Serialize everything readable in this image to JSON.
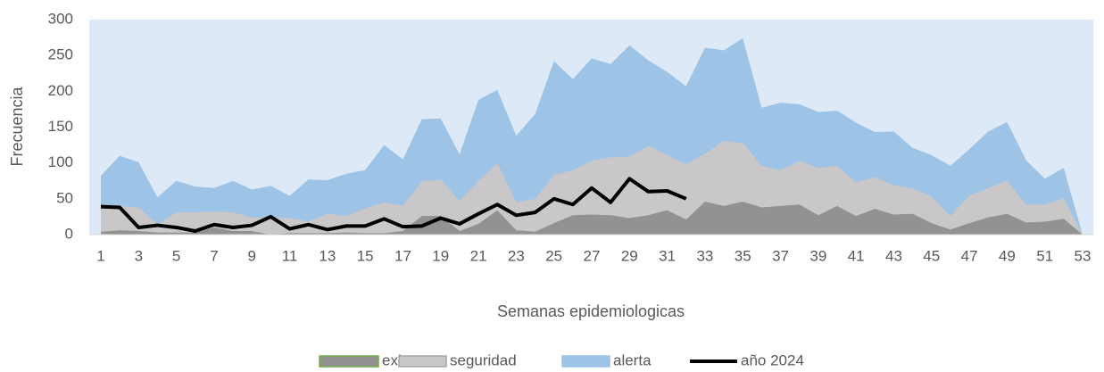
{
  "chart_data": {
    "type": "area",
    "ylabel": "Frecuencia",
    "xlabel": "Semanas epidemiologicas",
    "categories": [
      "1",
      null,
      "3",
      null,
      "5",
      null,
      "7",
      null,
      "9",
      null,
      "11",
      null,
      "13",
      null,
      "15",
      null,
      "17",
      null,
      "19",
      null,
      "21",
      null,
      "23",
      null,
      "25",
      null,
      "27",
      null,
      "29",
      null,
      "31",
      null,
      "33",
      null,
      "35",
      null,
      "37",
      null,
      "39",
      null,
      "41",
      null,
      "43",
      null,
      "45",
      null,
      "47",
      null,
      "49",
      null,
      "51",
      null,
      "53"
    ],
    "ylim": [
      0,
      300
    ],
    "yticks": [
      0,
      50,
      100,
      150,
      200,
      250,
      300
    ],
    "legend": "bottom",
    "series": [
      {
        "name": "alerta",
        "type": "area",
        "color": "#9dc3e6",
        "values": [
          82,
          110,
          101,
          52,
          75,
          67,
          65,
          75,
          63,
          68,
          54,
          77,
          76,
          85,
          90,
          125,
          105,
          161,
          162,
          112,
          188,
          202,
          138,
          168,
          242,
          217,
          246,
          238,
          264,
          243,
          227,
          207,
          261,
          257,
          274,
          177,
          184,
          182,
          171,
          173,
          156,
          143,
          144,
          121,
          111,
          96,
          119,
          144,
          157,
          104,
          78,
          93,
          0
        ]
      },
      {
        "name": "seguridad",
        "type": "area",
        "color": "#c9c7c7",
        "values": [
          40,
          40,
          38,
          14,
          31,
          31,
          32,
          31,
          24,
          24,
          23,
          18,
          29,
          26,
          37,
          45,
          40,
          74,
          77,
          47,
          75,
          100,
          45,
          50,
          83,
          90,
          103,
          108,
          109,
          124,
          111,
          98,
          113,
          131,
          128,
          96,
          90,
          103,
          93,
          96,
          73,
          80,
          69,
          64,
          53,
          26,
          54,
          65,
          75,
          42,
          42,
          51,
          0
        ]
      },
      {
        "name": "exito",
        "type": "area",
        "color": "#929292",
        "values": [
          4,
          6,
          5,
          3,
          3,
          3,
          10,
          5,
          5,
          0,
          2,
          2,
          2,
          3,
          2,
          2,
          5,
          26,
          26,
          5,
          15,
          34,
          6,
          4,
          16,
          27,
          28,
          27,
          23,
          27,
          34,
          21,
          46,
          40,
          46,
          38,
          40,
          42,
          27,
          40,
          26,
          36,
          28,
          29,
          16,
          7,
          16,
          24,
          29,
          17,
          18,
          22,
          0
        ]
      },
      {
        "name": "año 2024",
        "type": "line",
        "color": "#000000",
        "values": [
          39,
          38,
          10,
          13,
          10,
          5,
          14,
          10,
          13,
          25,
          8,
          14,
          7,
          12,
          12,
          22,
          11,
          12,
          23,
          15,
          29,
          42,
          27,
          31,
          50,
          42,
          65,
          45,
          78,
          60,
          61,
          50,
          null,
          null,
          null,
          null,
          null,
          null,
          null,
          null,
          null,
          null,
          null,
          null,
          null,
          null,
          null,
          null,
          null,
          null,
          null,
          null,
          null
        ]
      }
    ]
  }
}
